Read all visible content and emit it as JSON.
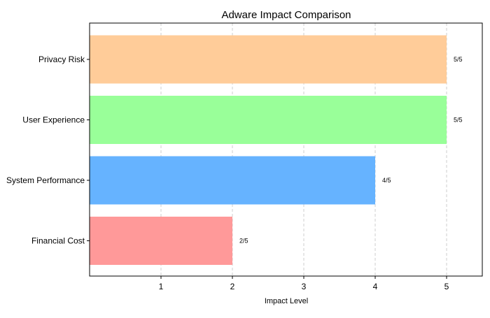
{
  "chart_data": {
    "type": "bar",
    "orientation": "horizontal",
    "title": "Adware Impact Comparison",
    "xlabel": "Impact Level",
    "ylabel": "",
    "categories": [
      "Privacy Risk",
      "User Experience",
      "System Performance",
      "Financial Cost"
    ],
    "values": [
      5,
      5,
      4,
      2
    ],
    "data_labels": [
      "5/5",
      "5/5",
      "4/5",
      "2/5"
    ],
    "colors": [
      "#FFCC99",
      "#99FF99",
      "#66B3FF",
      "#FF9999"
    ],
    "xticks": [
      "1",
      "2",
      "3",
      "4",
      "5"
    ],
    "xtick_values": [
      1,
      2,
      3,
      4,
      5
    ],
    "xlim": [
      0,
      5.5
    ],
    "grid": "x dashed",
    "legend": "none"
  }
}
